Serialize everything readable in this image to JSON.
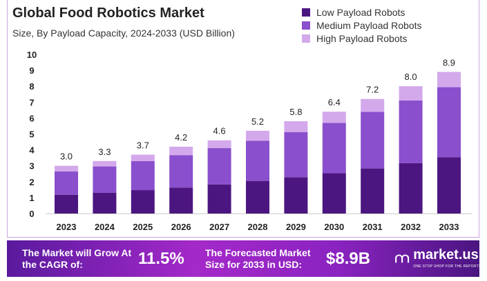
{
  "chart_data": {
    "type": "bar",
    "stacked": true,
    "title": "Global Food Robotics Market",
    "subtitle": "Size, By Payload Capacity, 2024-2033 (USD Billion)",
    "categories": [
      "2023",
      "2024",
      "2025",
      "2026",
      "2027",
      "2028",
      "2029",
      "2030",
      "2031",
      "2032",
      "2033"
    ],
    "series": [
      {
        "name": "Low Payload Robots",
        "color": "#4b1680",
        "values": [
          1.18,
          1.3,
          1.47,
          1.63,
          1.83,
          2.05,
          2.28,
          2.53,
          2.83,
          3.17,
          3.54
        ]
      },
      {
        "name": "Medium Payload Robots",
        "color": "#8a4fcc",
        "values": [
          1.46,
          1.66,
          1.82,
          2.04,
          2.28,
          2.52,
          2.84,
          3.17,
          3.56,
          3.93,
          4.4
        ]
      },
      {
        "name": "High Payload Robots",
        "color": "#d3a9ec",
        "values": [
          0.36,
          0.34,
          0.41,
          0.53,
          0.49,
          0.63,
          0.68,
          0.7,
          0.81,
          0.9,
          0.96
        ]
      }
    ],
    "totals": [
      "3.0",
      "3.3",
      "3.7",
      "4.2",
      "4.6",
      "5.2",
      "5.8",
      "6.4",
      "7.2",
      "8.0",
      "8.9"
    ],
    "ylim": [
      0,
      10
    ],
    "yticks": [
      "0",
      "1",
      "2",
      "3",
      "4",
      "5",
      "6",
      "7",
      "8",
      "9",
      "10"
    ],
    "grid": false,
    "legend": "top-right"
  },
  "banner": {
    "cagr_label": "The Market will Grow At the CAGR of:",
    "cagr_value": "11.5%",
    "forecast_label": "The Forecasted Market Size for 2033 in USD:",
    "forecast_value": "$8.9B",
    "brand": "market.us",
    "tagline": "ONE STOP SHOP FOR THE REPORTS"
  }
}
